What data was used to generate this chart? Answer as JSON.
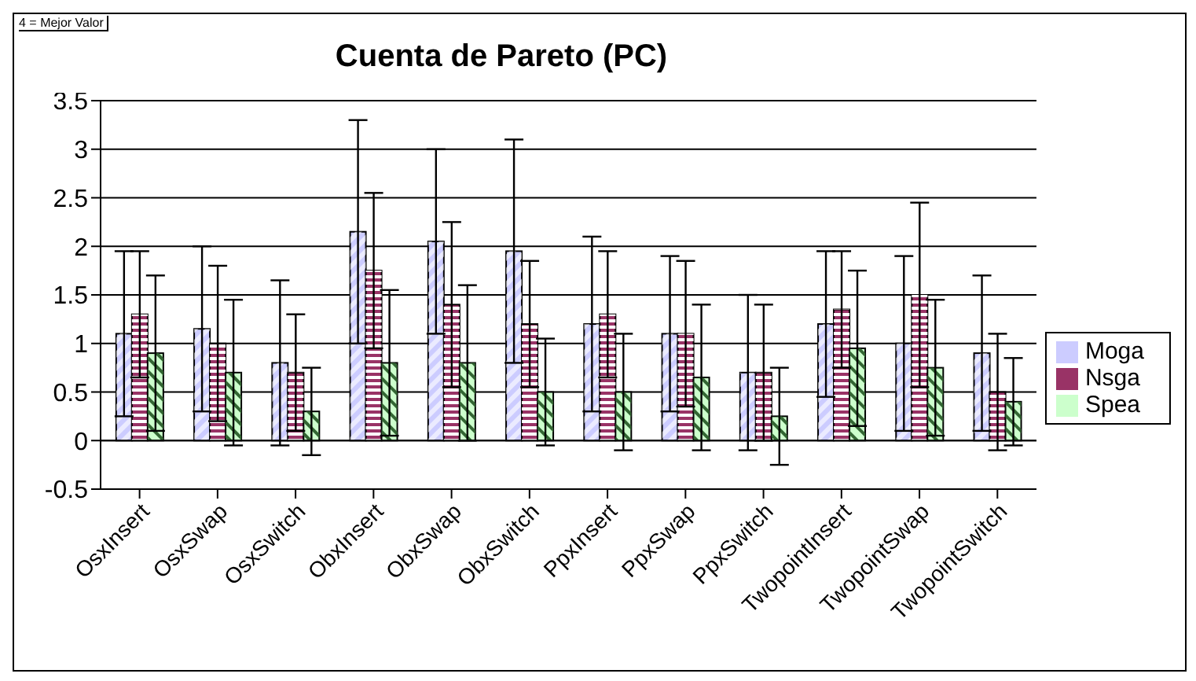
{
  "chart_data": {
    "type": "bar",
    "title": "Cuenta de Pareto (PC)",
    "annotations": [
      "4 = Mejor Valor"
    ],
    "categories": [
      "OsxInsert",
      "OsxSwap",
      "OsxSwitch",
      "ObxInsert",
      "ObxSwap",
      "ObxSwitch",
      "PpxInsert",
      "PpxSwap",
      "PpxSwitch",
      "TwopointInsert",
      "TwopointSwap",
      "TwopointSwitch"
    ],
    "series": [
      {
        "name": "Moga",
        "color": "#ccccff",
        "values": [
          1.1,
          1.15,
          0.8,
          2.15,
          2.05,
          1.95,
          1.2,
          1.1,
          0.7,
          1.2,
          1.0,
          0.9
        ],
        "errors": [
          0.85,
          0.85,
          0.85,
          1.15,
          0.95,
          1.15,
          0.9,
          0.8,
          0.8,
          0.75,
          0.9,
          0.8
        ]
      },
      {
        "name": "Nsga",
        "color": "#993366",
        "values": [
          1.3,
          1.0,
          0.7,
          1.75,
          1.4,
          1.2,
          1.3,
          1.1,
          0.7,
          1.35,
          1.5,
          0.5
        ],
        "errors": [
          0.65,
          0.8,
          0.6,
          0.8,
          0.85,
          0.65,
          0.65,
          0.75,
          0.7,
          0.6,
          0.95,
          0.6
        ]
      },
      {
        "name": "Spea",
        "color": "#ccffcc",
        "values": [
          0.9,
          0.7,
          0.3,
          0.8,
          0.8,
          0.5,
          0.5,
          0.65,
          0.25,
          0.95,
          0.75,
          0.4
        ],
        "errors": [
          0.8,
          0.75,
          0.45,
          0.75,
          0.8,
          0.55,
          0.6,
          0.75,
          0.5,
          0.8,
          0.7,
          0.45
        ]
      }
    ],
    "ylim": [
      -0.5,
      3.5
    ],
    "yticks": [
      -0.5,
      0,
      0.5,
      1,
      1.5,
      2,
      2.5,
      3,
      3.5
    ],
    "grid": "y",
    "legend": "right"
  }
}
